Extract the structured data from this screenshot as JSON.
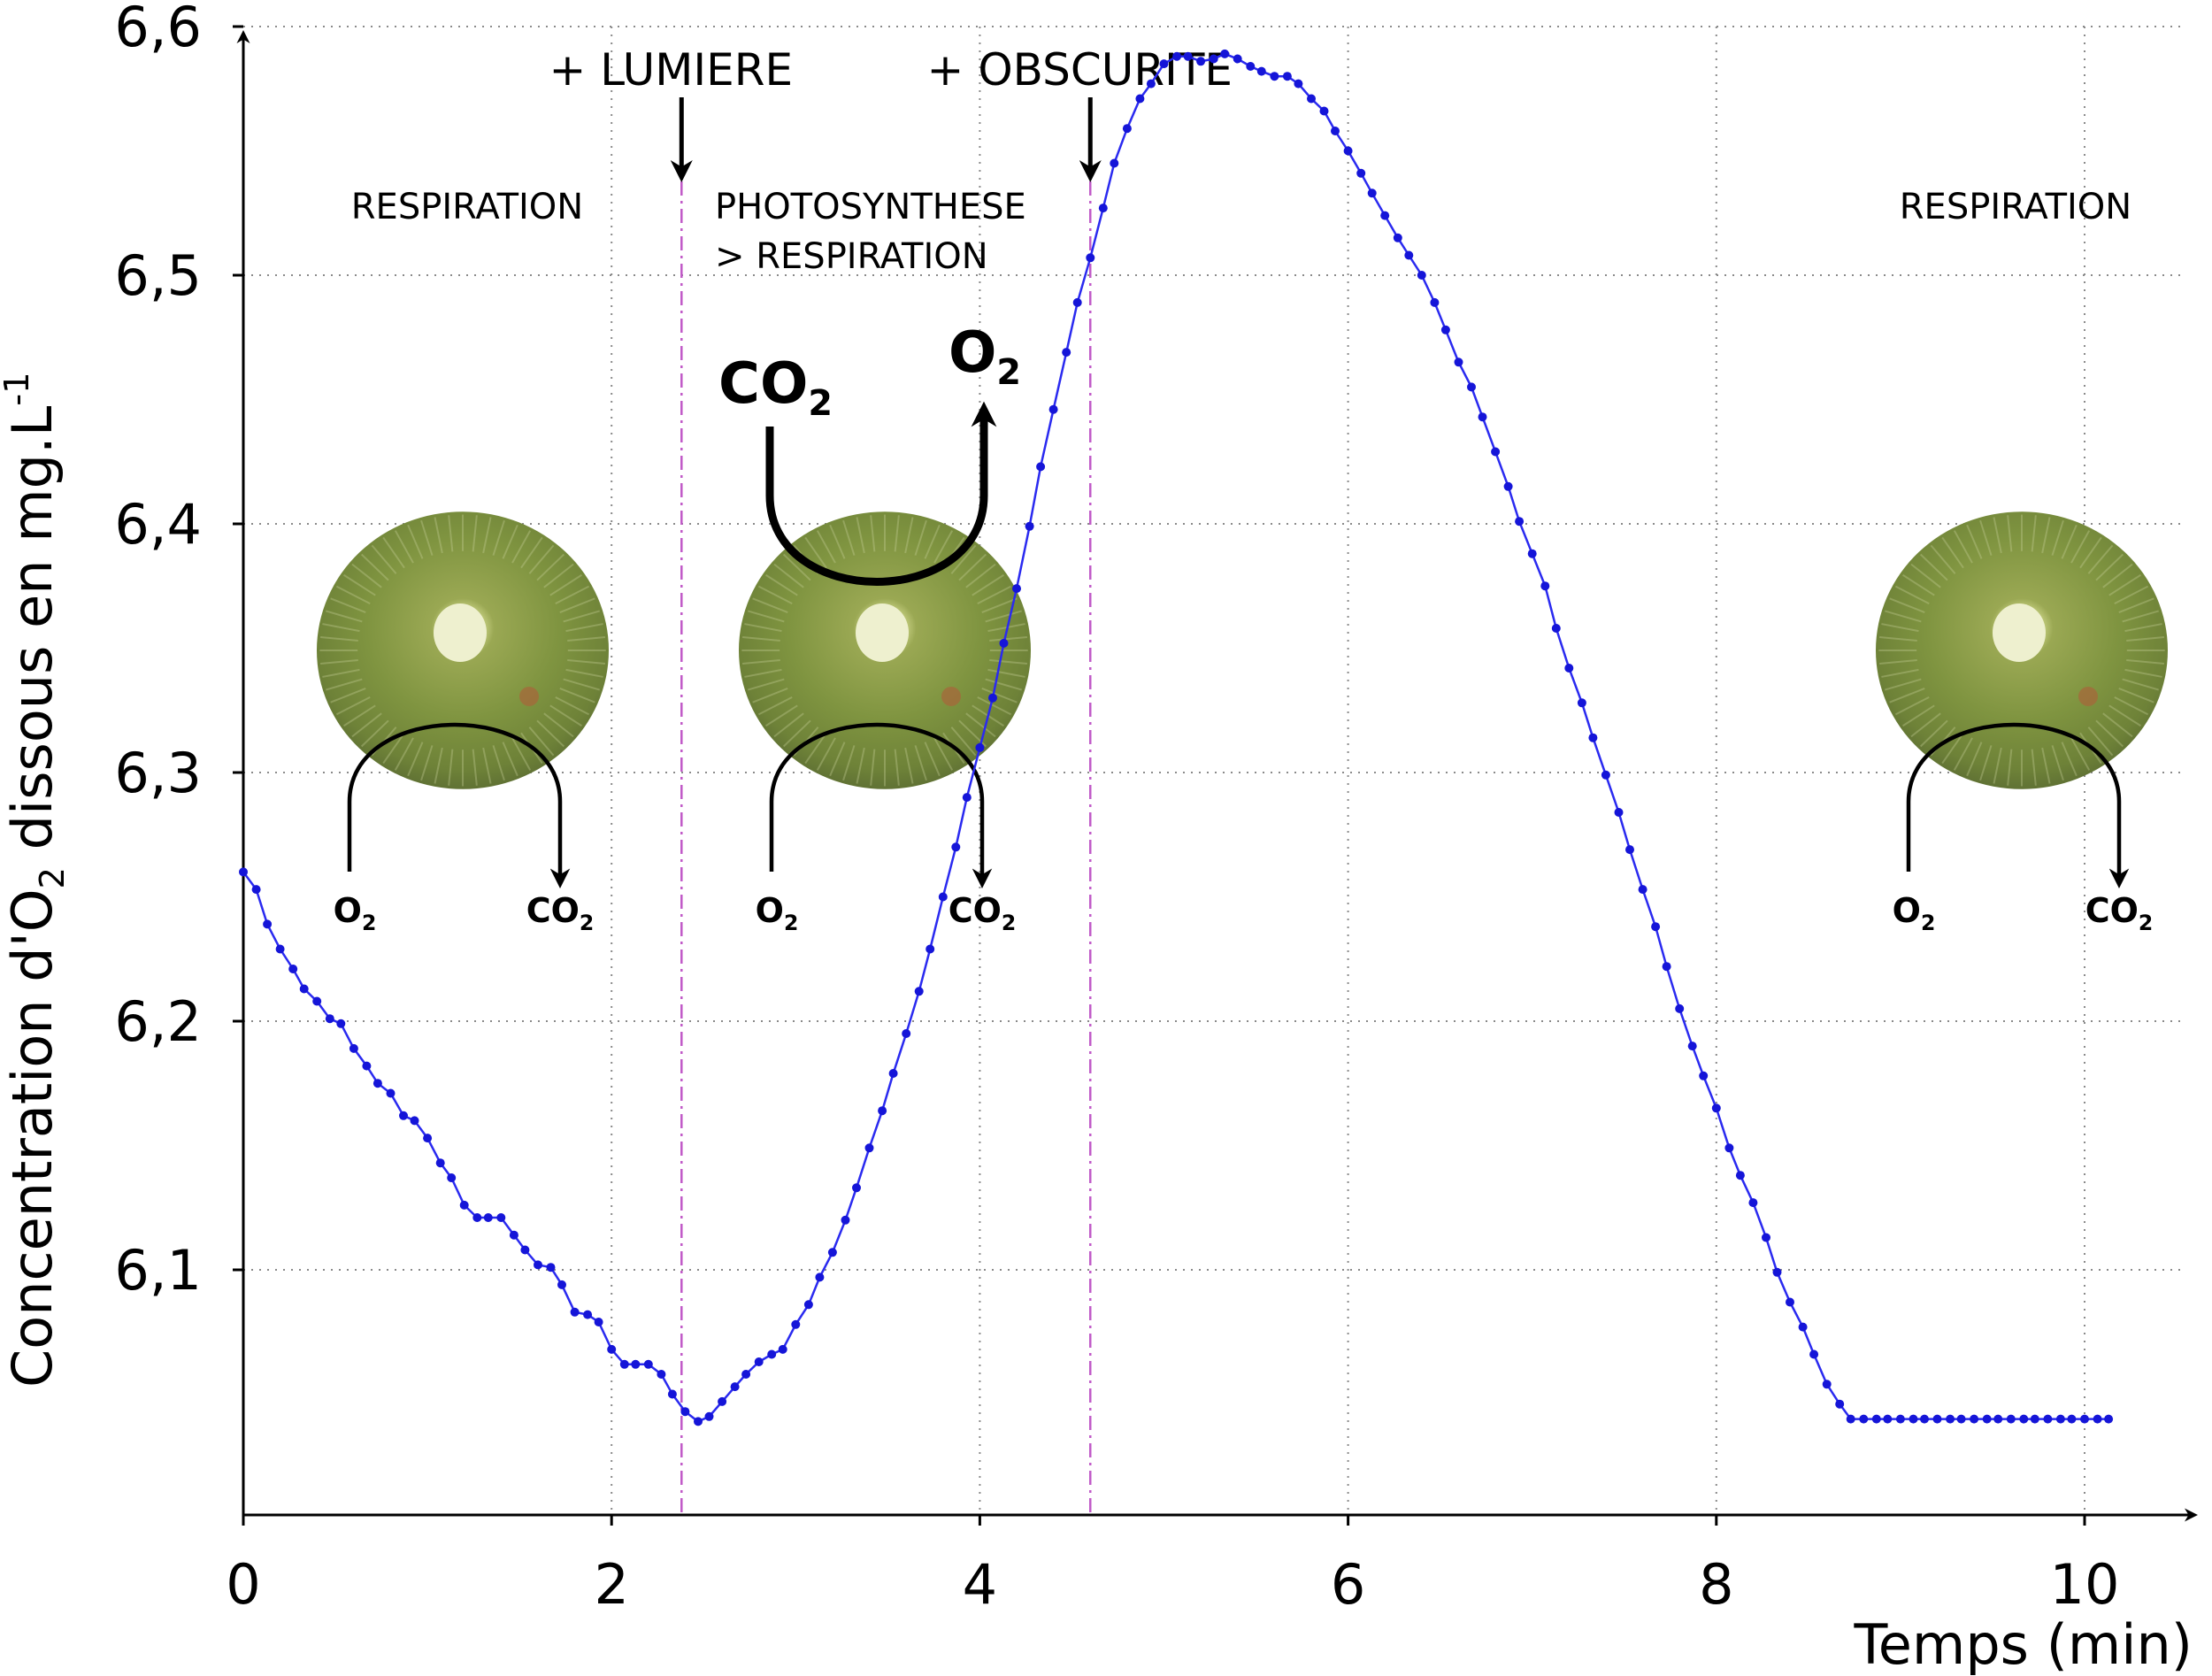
{
  "chart_data": {
    "type": "line",
    "title": "",
    "xlabel": "Temps (min)",
    "ylabel": "Concentration d'O",
    "ylabel_sub": "2",
    "ylabel_rest": " dissous en mg.L",
    "ylabel_sup": "-1",
    "xlim": [
      0,
      10.5
    ],
    "ylim": [
      6.015,
      6.6
    ],
    "x_ticks": [
      0,
      2,
      4,
      6,
      8,
      10
    ],
    "x_tick_labels": [
      "0",
      "2",
      "4",
      "6",
      "8",
      "10"
    ],
    "y_ticks": [
      6.1,
      6.2,
      6.3,
      6.4,
      6.5,
      6.6
    ],
    "y_tick_labels": [
      "6,1",
      "6,2",
      "6,3",
      "6,4",
      "6,5",
      "6,6"
    ],
    "grid": true,
    "series_color": "#1515d8",
    "events": [
      {
        "x": 2.38,
        "label": "+ LUMIERE"
      },
      {
        "x": 4.6,
        "label": "+ OBSCURITE"
      }
    ],
    "phases": [
      {
        "lines": [
          "RESPIRATION"
        ],
        "x": 1.2
      },
      {
        "lines": [
          "PHOTOSYNTHESE",
          "> RESPIRATION"
        ],
        "x": 2.58
      },
      {
        "lines": [
          "RESPIRATION"
        ],
        "x": 9.6
      }
    ],
    "gas_labels": {
      "o2_small": "O",
      "co2_small": "CO",
      "sub": "2",
      "co2_big": "CO",
      "o2_big": "O"
    },
    "series": [
      {
        "x": [
          0,
          0.07,
          0.13,
          0.2,
          0.27,
          0.33,
          0.4,
          0.47,
          0.53,
          0.6,
          0.67,
          0.73,
          0.8,
          0.87,
          0.93,
          1.0,
          1.07,
          1.13,
          1.2,
          1.27,
          1.33,
          1.4,
          1.47,
          1.53,
          1.6,
          1.67,
          1.73,
          1.8,
          1.87,
          1.93,
          2.0,
          2.07,
          2.13,
          2.2,
          2.27,
          2.33,
          2.4,
          2.47,
          2.53,
          2.6,
          2.67,
          2.73,
          2.8,
          2.87,
          2.93,
          3.0,
          3.07,
          3.13,
          3.2,
          3.27,
          3.33,
          3.4,
          3.47,
          3.53,
          3.6,
          3.67,
          3.73,
          3.8,
          3.87,
          3.93,
          4.0,
          4.07,
          4.13,
          4.2,
          4.27,
          4.33,
          4.4,
          4.47,
          4.53,
          4.6,
          4.67,
          4.73,
          4.8,
          4.87,
          4.93,
          5.0,
          5.07,
          5.13,
          5.2,
          5.27,
          5.33,
          5.4,
          5.47,
          5.53,
          5.6,
          5.67,
          5.73,
          5.8,
          5.87,
          5.93,
          6.0,
          6.07,
          6.13,
          6.2,
          6.27,
          6.33,
          6.4,
          6.47,
          6.53,
          6.6,
          6.67,
          6.73,
          6.8,
          6.87,
          6.93,
          7.0,
          7.07,
          7.13,
          7.2,
          7.27,
          7.33,
          7.4,
          7.47,
          7.53,
          7.6,
          7.67,
          7.73,
          7.8,
          7.87,
          7.93,
          8.0,
          8.07,
          8.13,
          8.2,
          8.27,
          8.33,
          8.4,
          8.47,
          8.53,
          8.6,
          8.67,
          8.73,
          8.8,
          8.87,
          8.93,
          9.0,
          9.07,
          9.13,
          9.2,
          9.27,
          9.33,
          9.4,
          9.47,
          9.53,
          9.6,
          9.67,
          9.73,
          9.8,
          9.87,
          9.93,
          10.0,
          10.07,
          10.13
        ],
        "y": [
          6.26,
          6.253,
          6.239,
          6.229,
          6.221,
          6.213,
          6.208,
          6.201,
          6.199,
          6.189,
          6.182,
          6.175,
          6.171,
          6.162,
          6.16,
          6.153,
          6.143,
          6.137,
          6.126,
          6.121,
          6.121,
          6.121,
          6.114,
          6.108,
          6.102,
          6.101,
          6.094,
          6.083,
          6.082,
          6.079,
          6.068,
          6.062,
          6.062,
          6.062,
          6.058,
          6.05,
          6.043,
          6.039,
          6.041,
          6.047,
          6.053,
          6.058,
          6.063,
          6.066,
          6.068,
          6.078,
          6.086,
          6.097,
          6.107,
          6.12,
          6.133,
          6.149,
          6.164,
          6.179,
          6.195,
          6.212,
          6.229,
          6.25,
          6.27,
          6.29,
          6.31,
          6.33,
          6.352,
          6.374,
          6.399,
          6.423,
          6.446,
          6.469,
          6.489,
          6.507,
          6.527,
          6.545,
          6.559,
          6.571,
          6.577,
          6.585,
          6.588,
          6.588,
          6.586,
          6.587,
          6.589,
          6.587,
          6.584,
          6.582,
          6.58,
          6.58,
          6.577,
          6.571,
          6.566,
          6.558,
          6.55,
          6.541,
          6.533,
          6.524,
          6.515,
          6.508,
          6.5,
          6.489,
          6.478,
          6.465,
          6.455,
          6.443,
          6.429,
          6.415,
          6.401,
          6.388,
          6.375,
          6.358,
          6.342,
          6.328,
          6.314,
          6.299,
          6.284,
          6.269,
          6.253,
          6.238,
          6.222,
          6.205,
          6.19,
          6.178,
          6.165,
          6.149,
          6.138,
          6.127,
          6.113,
          6.099,
          6.087,
          6.077,
          6.066,
          6.054,
          6.046,
          6.04,
          6.04,
          6.04,
          6.04,
          6.04,
          6.04,
          6.04,
          6.04,
          6.04,
          6.04,
          6.04,
          6.04,
          6.04,
          6.04,
          6.04,
          6.04,
          6.04,
          6.04,
          6.04,
          6.04,
          6.04,
          6.04
        ]
      }
    ]
  }
}
